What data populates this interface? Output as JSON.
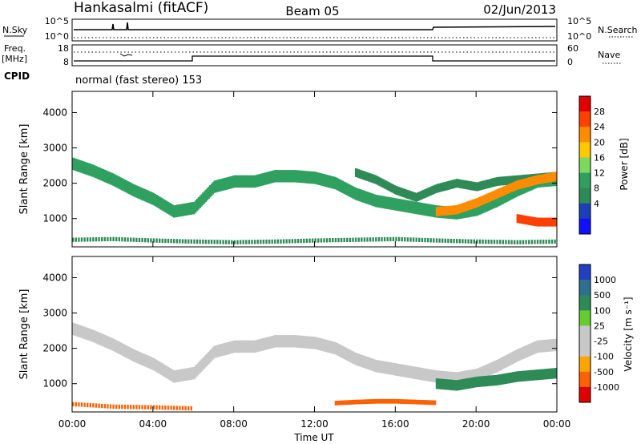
{
  "header": {
    "station": "Hankasalmi (fitACF)",
    "beam": "Beam 05",
    "date": "02/Jun/2013"
  },
  "meta_panels": {
    "nsky_label": "N.Sky",
    "nsky_ticks": [
      "10^5",
      "10^0"
    ],
    "nsearch_label": "N.Search",
    "nsearch_ticks": [
      "10^5",
      "10^0"
    ],
    "freq_label_1": "Freq.",
    "freq_label_2": "[MHz]",
    "freq_ticks": [
      "18",
      "8"
    ],
    "nave_label": "Nave",
    "nave_ticks": [
      "60",
      "0"
    ],
    "cpid_label": "CPID",
    "cpid_text": "normal (fast stereo) 153"
  },
  "chart_data": [
    {
      "type": "heatmap",
      "panel": "power",
      "ylabel": "Slant Range [km]",
      "ylim": [
        200,
        4600
      ],
      "yticks": [
        "1000",
        "2000",
        "3000",
        "4000"
      ],
      "xticks": [
        "00:00",
        "04:00",
        "08:00",
        "12:00",
        "16:00",
        "20:00",
        "00:00"
      ],
      "colorbar": {
        "label": "Power [dB]",
        "ticks": [
          "28",
          "24",
          "20",
          "16",
          "12",
          "8",
          "4"
        ],
        "colors": [
          "#e00000",
          "#ff4000",
          "#ff8c00",
          "#ffc800",
          "#7ed860",
          "#2fa060",
          "#2e8b57",
          "#1c3fb8",
          "#1010ff"
        ]
      },
      "bands": [
        {
          "t": [
            0,
            1,
            2,
            3,
            4,
            5,
            6,
            7,
            8,
            9,
            10,
            11,
            12,
            13,
            14,
            15,
            16,
            17,
            18,
            19,
            20,
            21,
            22,
            23,
            24
          ],
          "r": [
            2550,
            2350,
            2100,
            1800,
            1550,
            1200,
            1300,
            1900,
            2050,
            2050,
            2200,
            2200,
            2150,
            2000,
            1700,
            1500,
            1400,
            1300,
            1200,
            1150,
            1250,
            1500,
            1800,
            2050,
            2100
          ],
          "width": 350,
          "level": 10
        },
        {
          "t": [
            14,
            15,
            16,
            17,
            18,
            19,
            20,
            21,
            22,
            23,
            24
          ],
          "r": [
            2300,
            2100,
            1800,
            1600,
            1850,
            2000,
            1900,
            2050,
            2100,
            2150,
            2200
          ],
          "width": 250,
          "level": 9
        },
        {
          "t": [
            18,
            19,
            20,
            21,
            22,
            23,
            24
          ],
          "r": [
            1200,
            1250,
            1450,
            1700,
            1950,
            2100,
            2200
          ],
          "width": 260,
          "level": 22
        },
        {
          "t": [
            22,
            23,
            24
          ],
          "r": [
            1000,
            900,
            900
          ],
          "width": 250,
          "level": 24
        },
        {
          "t": [
            0,
            2,
            4,
            6,
            8,
            10,
            12,
            14,
            16,
            18,
            20,
            22,
            24
          ],
          "r": [
            400,
            420,
            380,
            350,
            330,
            350,
            380,
            400,
            420,
            380,
            350,
            330,
            350
          ],
          "width": 120,
          "level": 8
        }
      ]
    },
    {
      "type": "heatmap",
      "panel": "velocity",
      "ylabel": "Slant Range [km]",
      "xlabel": "Time UT",
      "ylim": [
        200,
        4600
      ],
      "yticks": [
        "1000",
        "2000",
        "3000",
        "4000"
      ],
      "xticks": [
        "00:00",
        "04:00",
        "08:00",
        "12:00",
        "16:00",
        "20:00",
        "00:00"
      ],
      "colorbar": {
        "label": "Velocity [m s⁻¹]",
        "ticks": [
          "1000",
          "500",
          "100",
          "25",
          "-25",
          "-100",
          "-500",
          "-1000"
        ],
        "colors": [
          "#2040c0",
          "#2f6f8f",
          "#2e8b57",
          "#66cc33",
          "#c8c8c8",
          "#c8c8c8",
          "#ffa500",
          "#ff6000",
          "#e00000"
        ]
      },
      "bands": [
        {
          "t": [
            0,
            1,
            2,
            3,
            4,
            5,
            6,
            7,
            8,
            9,
            10,
            11,
            12,
            13,
            14,
            15,
            16,
            17,
            18,
            19,
            20,
            21,
            22,
            23,
            24
          ],
          "r": [
            2550,
            2350,
            2100,
            1800,
            1550,
            1200,
            1300,
            1900,
            2050,
            2050,
            2200,
            2200,
            2150,
            2000,
            1700,
            1500,
            1400,
            1300,
            1200,
            1150,
            1250,
            1500,
            1800,
            2050,
            2100
          ],
          "width": 350,
          "level": 0
        },
        {
          "t": [
            18,
            19,
            20,
            21,
            22,
            23,
            24
          ],
          "r": [
            1000,
            950,
            1050,
            1100,
            1200,
            1250,
            1300
          ],
          "width": 300,
          "level": 300
        },
        {
          "t": [
            13,
            14,
            15,
            16,
            17,
            18
          ],
          "r": [
            450,
            480,
            500,
            500,
            480,
            460
          ],
          "width": 130,
          "level": -400
        },
        {
          "t": [
            0,
            2,
            4,
            6
          ],
          "r": [
            420,
            350,
            330,
            300
          ],
          "width": 120,
          "level": -200
        }
      ]
    }
  ]
}
